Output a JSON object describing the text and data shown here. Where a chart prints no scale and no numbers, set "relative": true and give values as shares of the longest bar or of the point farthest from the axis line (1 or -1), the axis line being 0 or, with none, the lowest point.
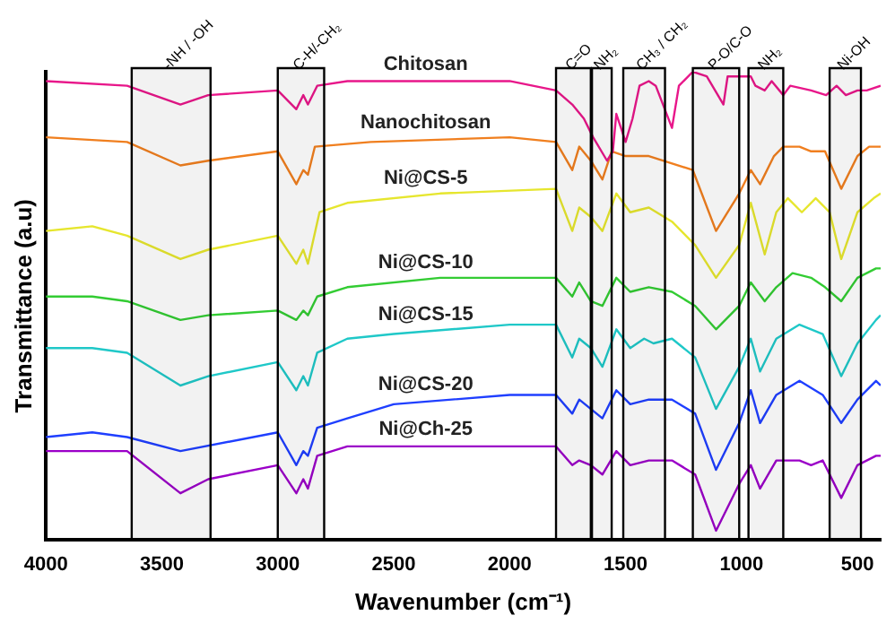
{
  "chart_data": {
    "type": "line",
    "xlabel": "Wavenumber (cm⁻¹)",
    "ylabel": "Transmittance (a.u)",
    "relative": true,
    "xlim": [
      4000,
      400
    ],
    "xticks": [
      4000,
      3500,
      3000,
      2500,
      2000,
      1500,
      1000,
      500
    ],
    "grid": false,
    "legend": false,
    "marker": "none",
    "series": [
      {
        "name": "Chitosan",
        "color": "#e8178a",
        "x": [
          4000,
          3650,
          3420,
          3300,
          3000,
          2920,
          2890,
          2870,
          2830,
          2700,
          2000,
          1800,
          1730,
          1680,
          1640,
          1580,
          1555,
          1540,
          1520,
          1500,
          1470,
          1440,
          1400,
          1370,
          1300,
          1270,
          1210,
          1150,
          1078,
          1060,
          960,
          940,
          900,
          870,
          820,
          790,
          700,
          635,
          590,
          550,
          500,
          460,
          400
        ],
        "values": [
          0.98,
          0.97,
          0.93,
          0.95,
          0.96,
          0.92,
          0.95,
          0.93,
          0.97,
          0.98,
          0.98,
          0.96,
          0.93,
          0.9,
          0.86,
          0.81,
          0.83,
          0.91,
          0.88,
          0.85,
          0.9,
          0.97,
          0.98,
          0.97,
          0.88,
          0.97,
          1.0,
          0.99,
          0.93,
          0.99,
          0.99,
          0.97,
          0.96,
          0.98,
          0.95,
          0.97,
          0.96,
          0.95,
          0.97,
          0.95,
          0.96,
          0.96,
          0.97
        ]
      },
      {
        "name": "Nanochitosan",
        "color": "#f07f1f",
        "x": [
          4000,
          3650,
          3420,
          3300,
          3000,
          2920,
          2890,
          2870,
          2840,
          2600,
          2000,
          1800,
          1730,
          1700,
          1650,
          1600,
          1560,
          1500,
          1400,
          1210,
          1110,
          1010,
          960,
          920,
          860,
          820,
          750,
          700,
          640,
          570,
          500,
          450,
          400
        ],
        "values": [
          0.86,
          0.85,
          0.8,
          0.81,
          0.83,
          0.76,
          0.79,
          0.78,
          0.84,
          0.85,
          0.86,
          0.85,
          0.79,
          0.84,
          0.81,
          0.77,
          0.83,
          0.82,
          0.82,
          0.79,
          0.66,
          0.74,
          0.79,
          0.76,
          0.82,
          0.84,
          0.84,
          0.83,
          0.83,
          0.75,
          0.82,
          0.84,
          0.84
        ]
      },
      {
        "name": "Ni@CS-5",
        "color": "#e6e62e",
        "x": [
          4000,
          3800,
          3650,
          3420,
          3300,
          3000,
          2920,
          2890,
          2870,
          2820,
          2700,
          2300,
          1800,
          1730,
          1700,
          1650,
          1600,
          1540,
          1480,
          1400,
          1300,
          1200,
          1110,
          1010,
          960,
          900,
          850,
          800,
          740,
          680,
          620,
          570,
          500,
          430,
          400
        ],
        "values": [
          0.66,
          0.67,
          0.65,
          0.6,
          0.62,
          0.65,
          0.59,
          0.62,
          0.59,
          0.7,
          0.72,
          0.74,
          0.75,
          0.66,
          0.71,
          0.69,
          0.66,
          0.74,
          0.7,
          0.71,
          0.68,
          0.63,
          0.56,
          0.63,
          0.72,
          0.61,
          0.7,
          0.73,
          0.7,
          0.73,
          0.7,
          0.6,
          0.7,
          0.73,
          0.74
        ]
      },
      {
        "name": "Ni@CS-10",
        "color": "#33cc33",
        "x": [
          4000,
          3800,
          3650,
          3420,
          3300,
          3000,
          2920,
          2890,
          2870,
          2830,
          2700,
          2300,
          1800,
          1730,
          1700,
          1650,
          1600,
          1540,
          1480,
          1400,
          1300,
          1200,
          1110,
          1010,
          960,
          900,
          850,
          780,
          700,
          640,
          570,
          500,
          420,
          400
        ],
        "values": [
          0.52,
          0.52,
          0.51,
          0.47,
          0.48,
          0.49,
          0.47,
          0.49,
          0.48,
          0.52,
          0.54,
          0.56,
          0.56,
          0.52,
          0.55,
          0.51,
          0.5,
          0.56,
          0.53,
          0.54,
          0.53,
          0.5,
          0.45,
          0.5,
          0.55,
          0.51,
          0.54,
          0.57,
          0.56,
          0.54,
          0.51,
          0.56,
          0.58,
          0.58
        ]
      },
      {
        "name": "Ni@CS-15",
        "color": "#1fc8c8",
        "x": [
          4000,
          3800,
          3650,
          3420,
          3300,
          3000,
          2920,
          2890,
          2870,
          2830,
          2700,
          2500,
          2000,
          1800,
          1730,
          1700,
          1650,
          1600,
          1540,
          1480,
          1420,
          1380,
          1300,
          1200,
          1110,
          1010,
          960,
          920,
          850,
          750,
          650,
          570,
          500,
          420,
          400
        ],
        "values": [
          0.41,
          0.41,
          0.4,
          0.33,
          0.35,
          0.38,
          0.32,
          0.35,
          0.33,
          0.4,
          0.43,
          0.44,
          0.46,
          0.46,
          0.39,
          0.43,
          0.41,
          0.37,
          0.45,
          0.41,
          0.43,
          0.42,
          0.43,
          0.39,
          0.28,
          0.37,
          0.43,
          0.36,
          0.43,
          0.46,
          0.44,
          0.35,
          0.42,
          0.47,
          0.48
        ]
      },
      {
        "name": "Ni@CS-20",
        "color": "#1f3fff",
        "x": [
          4000,
          3800,
          3650,
          3420,
          3000,
          2920,
          2890,
          2870,
          2830,
          2700,
          2500,
          2000,
          1800,
          1730,
          1700,
          1650,
          1600,
          1540,
          1480,
          1400,
          1300,
          1200,
          1110,
          1010,
          960,
          920,
          850,
          750,
          650,
          570,
          500,
          420,
          400
        ],
        "values": [
          0.22,
          0.23,
          0.22,
          0.19,
          0.23,
          0.16,
          0.19,
          0.18,
          0.24,
          0.26,
          0.29,
          0.31,
          0.31,
          0.27,
          0.3,
          0.28,
          0.26,
          0.32,
          0.29,
          0.3,
          0.3,
          0.27,
          0.15,
          0.25,
          0.32,
          0.25,
          0.31,
          0.34,
          0.31,
          0.25,
          0.3,
          0.34,
          0.33
        ]
      },
      {
        "name": "Ni@Ch-25",
        "color": "#9b00c8",
        "x": [
          4000,
          3800,
          3650,
          3420,
          3300,
          3000,
          2920,
          2890,
          2870,
          2830,
          2700,
          2500,
          2000,
          1800,
          1730,
          1700,
          1650,
          1600,
          1540,
          1480,
          1400,
          1300,
          1200,
          1110,
          1010,
          960,
          920,
          850,
          750,
          700,
          650,
          570,
          500,
          420,
          400
        ],
        "values": [
          0.19,
          0.19,
          0.19,
          0.1,
          0.13,
          0.16,
          0.1,
          0.13,
          0.11,
          0.18,
          0.2,
          0.2,
          0.2,
          0.2,
          0.16,
          0.17,
          0.16,
          0.14,
          0.19,
          0.16,
          0.17,
          0.17,
          0.14,
          0.02,
          0.12,
          0.16,
          0.11,
          0.17,
          0.17,
          0.16,
          0.17,
          0.09,
          0.16,
          0.18,
          0.18
        ]
      }
    ],
    "bands": [
      {
        "axis": "x",
        "from": 3630,
        "to": 3290,
        "label": "-NH / -OH",
        "color": "#000000"
      },
      {
        "axis": "x",
        "from": 3000,
        "to": 2800,
        "label": "C-H/-CH₂",
        "color": "#000000"
      },
      {
        "axis": "x",
        "from": 1800,
        "to": 1650,
        "label": "C=O",
        "color": "#000000"
      },
      {
        "axis": "x",
        "from": 1645,
        "to": 1560,
        "label": "NH₂",
        "color": "#000000"
      },
      {
        "axis": "x",
        "from": 1510,
        "to": 1330,
        "label": "CH₃ / CH₂",
        "color": "#000000"
      },
      {
        "axis": "x",
        "from": 1210,
        "to": 1010,
        "label": "P-O/C-O",
        "color": "#000000"
      },
      {
        "axis": "x",
        "from": 970,
        "to": 820,
        "label": "NH₂",
        "color": "#000000"
      },
      {
        "axis": "x",
        "from": 620,
        "to": 485,
        "label": "Ni-OH",
        "color": "#000000"
      }
    ]
  }
}
